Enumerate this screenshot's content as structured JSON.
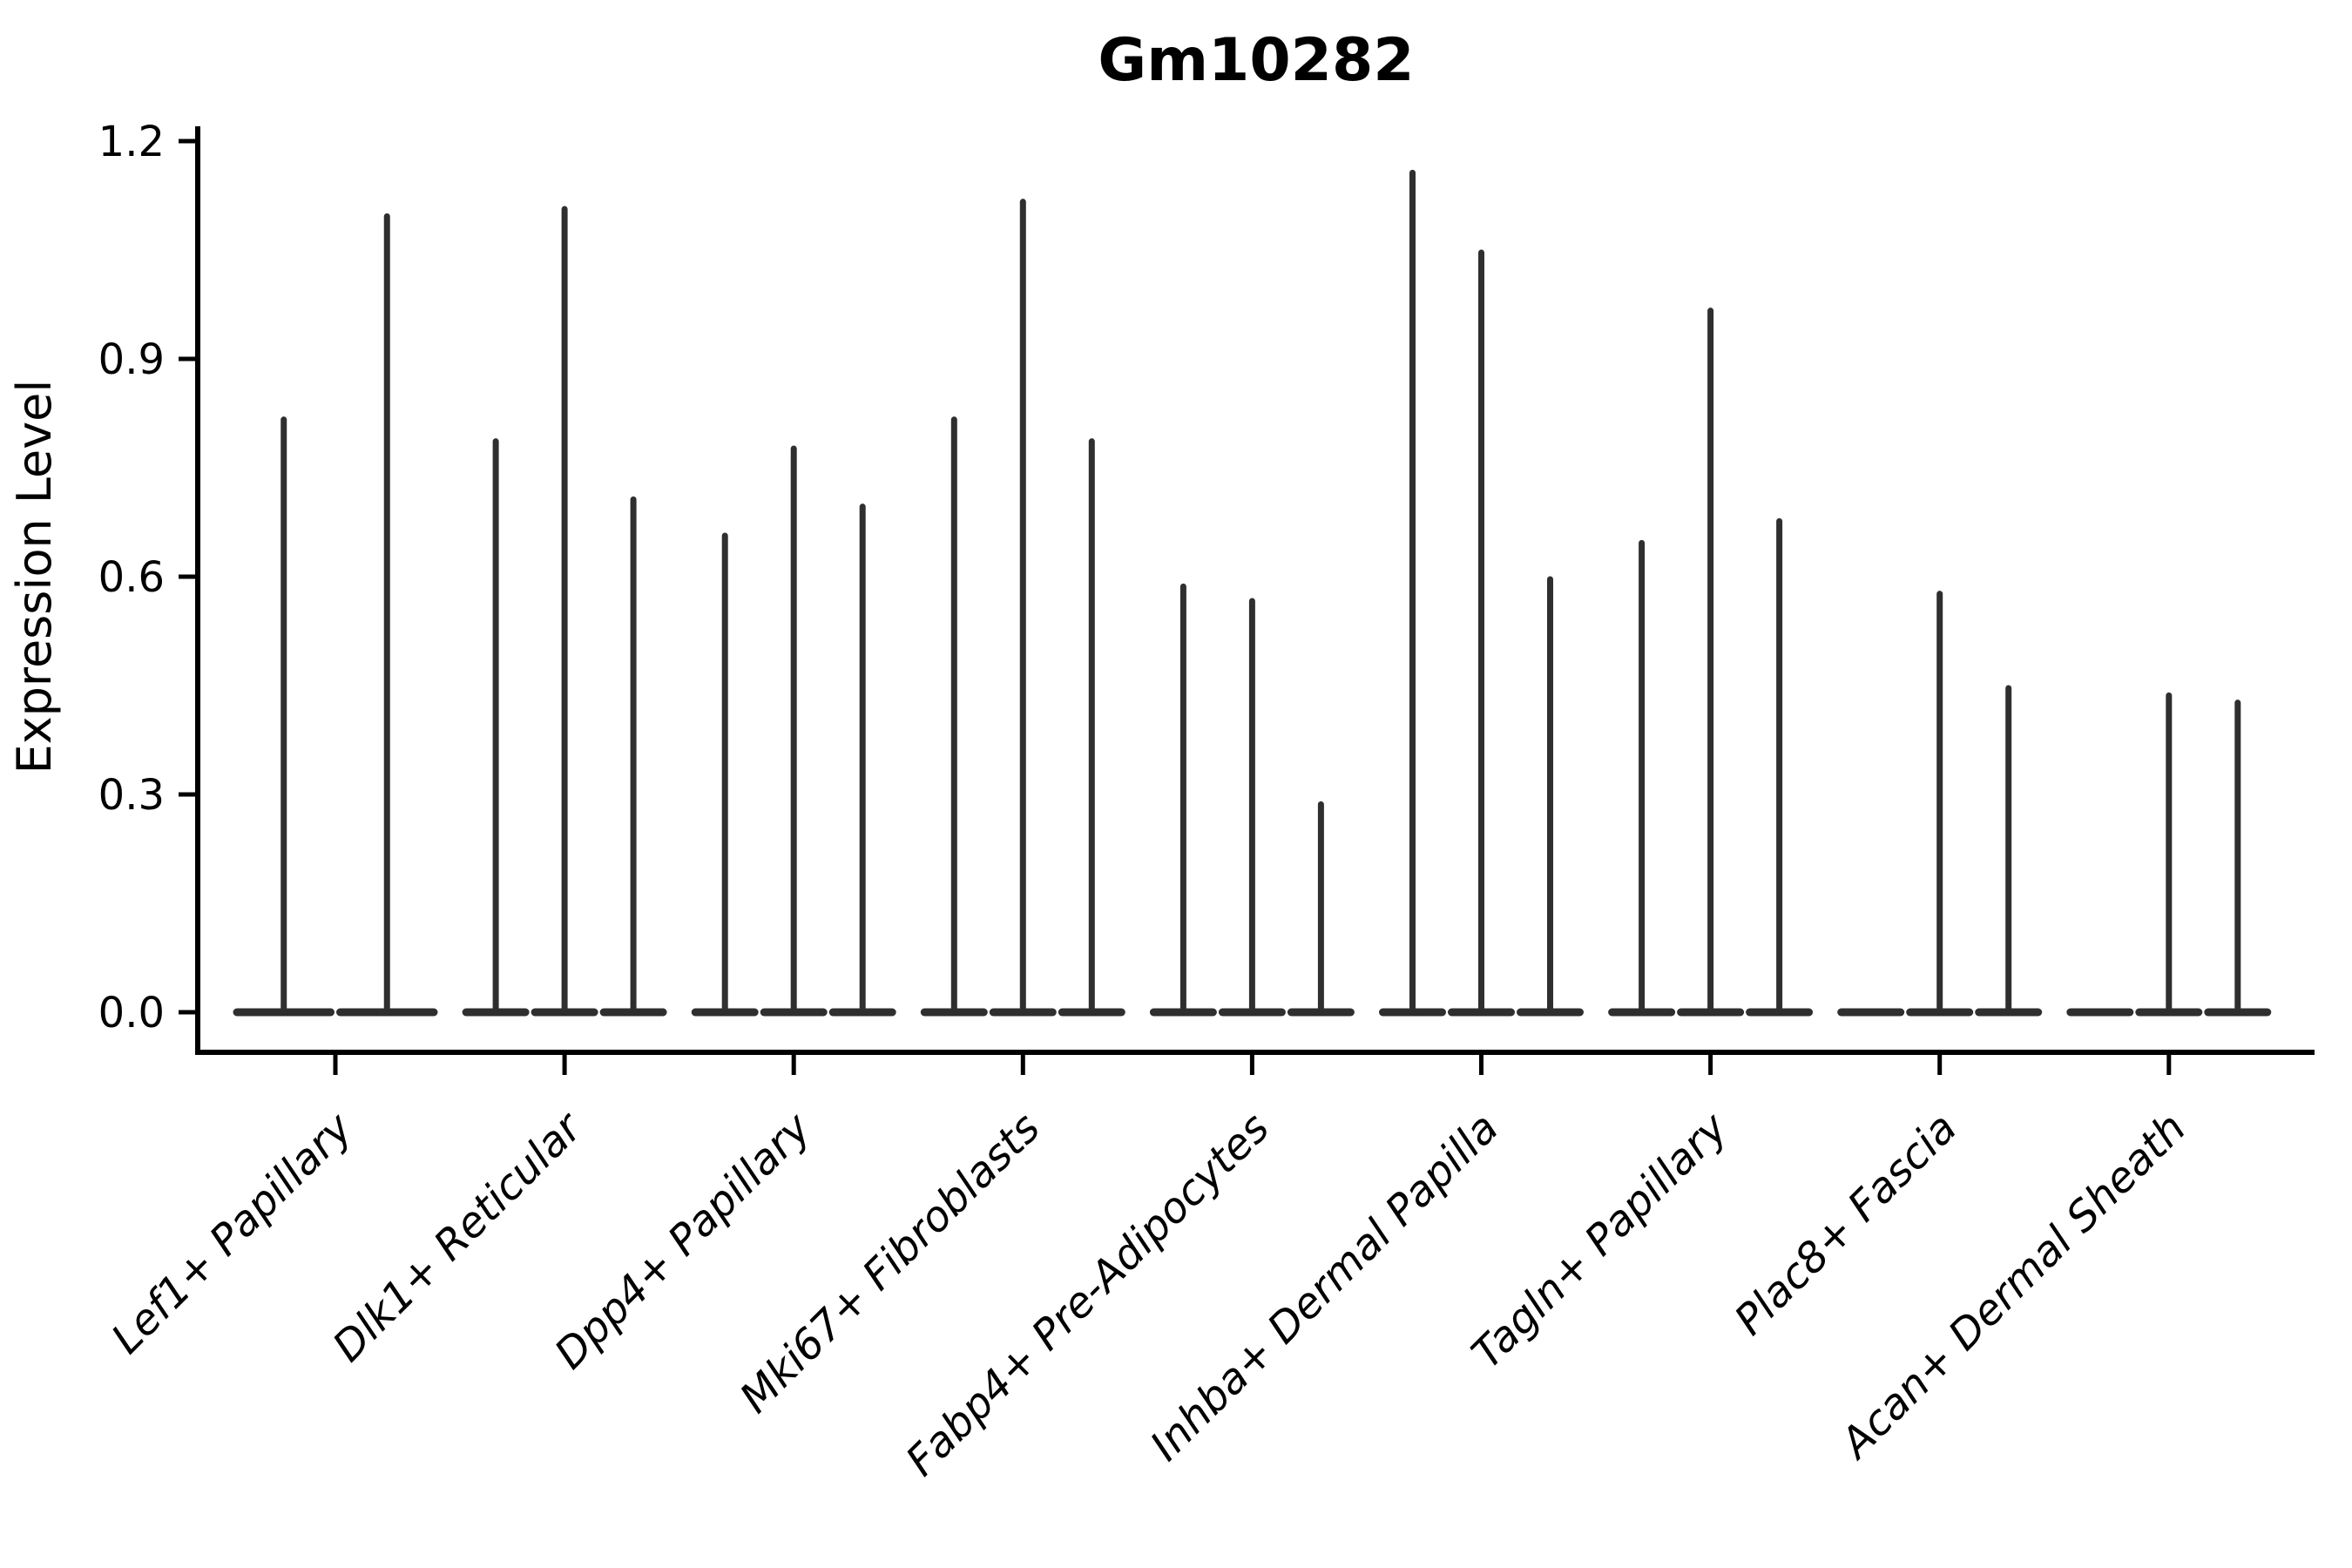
{
  "chart_data": {
    "type": "violin",
    "title": "Gm10282",
    "ylabel": "Expression Level",
    "xlabel": "",
    "ylim": [
      0,
      1.2
    ],
    "yticks": [
      "0.0",
      "0.3",
      "0.6",
      "0.9",
      "1.2"
    ],
    "ytick_values": [
      0.0,
      0.3,
      0.6,
      0.9,
      1.2
    ],
    "grid": false,
    "legend": "none",
    "groups": [
      {
        "label": "Lef1+ Papillary",
        "violin_max_values": [
          0.82,
          1.1
        ]
      },
      {
        "label": "Dlk1+ Reticular",
        "violin_max_values": [
          0.79,
          1.11,
          0.71
        ]
      },
      {
        "label": "Dpp4+ Papillary",
        "violin_max_values": [
          0.66,
          0.78,
          0.7
        ]
      },
      {
        "label": "Mki67+ Fibroblasts",
        "violin_max_values": [
          0.82,
          1.12,
          0.79
        ]
      },
      {
        "label": "Fabp4+ Pre-Adipocytes",
        "violin_max_values": [
          0.59,
          0.57,
          0.29
        ]
      },
      {
        "label": "Inhba+ Dermal Papilla",
        "violin_max_values": [
          1.16,
          1.05,
          0.6
        ]
      },
      {
        "label": "Tagln+ Papillary",
        "violin_max_values": [
          0.65,
          0.97,
          0.68
        ]
      },
      {
        "label": "Plac8+ Fascia",
        "violin_max_values": [
          0,
          0.58,
          0.45
        ]
      },
      {
        "label": "Acan+ Dermal Sheath",
        "violin_max_values": [
          0,
          0.44,
          0.43
        ]
      }
    ],
    "style": {
      "violin_color": "#2f2f2f",
      "axis_color": "#000000",
      "text_color": "#000000",
      "background": "#ffffff"
    }
  }
}
